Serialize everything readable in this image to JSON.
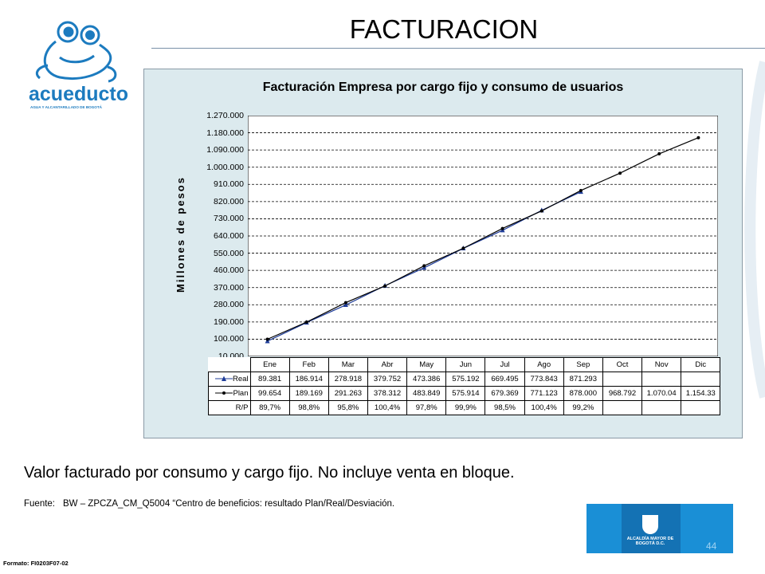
{
  "slide": {
    "title": "FACTURACION",
    "note": "Valor facturado por consumo y cargo fijo. No incluye venta en bloque.",
    "source_label": "Fuente:",
    "source_text": "BW – ZPCZA_CM_Q5004  “Centro  de beneficios: resultado Plan/Real/Desviación.",
    "formato": "Formato: FI0203F07-02",
    "page_number": "44",
    "logo_text": "acueducto",
    "logo_subtext": "AGUA Y ALCANTARILLADO DE BOGOTÁ",
    "alcaldia_text": "ALCALDÍA MAYOR DE BOGOTÁ D.C.",
    "colors": {
      "logo_blue": "#1c7bbf",
      "chart_bg": "#dceaee",
      "real_series": "#1f3d99",
      "plan_series": "#000000",
      "footer_blue": "#1a8fd6"
    }
  },
  "chart_data": {
    "type": "line",
    "title": "Facturación Empresa por cargo fijo y consumo de usuarios",
    "xlabel": "",
    "ylabel": "Millones de pesos",
    "ylim": [
      10000,
      1270000
    ],
    "yticks": [
      "1.270.000",
      "1.180.000",
      "1.090.000",
      "1.000.000",
      "910.000",
      "820.000",
      "730.000",
      "640.000",
      "550.000",
      "460.000",
      "370.000",
      "280.000",
      "190.000",
      "100.000",
      "10.000"
    ],
    "ytick_values": [
      1270000,
      1180000,
      1090000,
      1000000,
      910000,
      820000,
      730000,
      640000,
      550000,
      460000,
      370000,
      280000,
      190000,
      100000,
      10000
    ],
    "grid": "horizontal dashed",
    "categories": [
      "Ene",
      "Feb",
      "Mar",
      "Abr",
      "May",
      "Jun",
      "Jul",
      "Ago",
      "Sep",
      "Oct",
      "Nov",
      "Dic"
    ],
    "series": [
      {
        "name": "Real",
        "marker": "triangle",
        "values": [
          89381,
          186914,
          278918,
          379752,
          473386,
          575192,
          669495,
          773843,
          871293,
          null,
          null,
          null
        ],
        "labels": [
          "89.381",
          "186.914",
          "278.918",
          "379.752",
          "473.386",
          "575.192",
          "669.495",
          "773.843",
          "871.293",
          "",
          "",
          ""
        ]
      },
      {
        "name": "Plan",
        "marker": "diamond",
        "values": [
          99654,
          189169,
          291263,
          378312,
          483849,
          575914,
          679369,
          771123,
          878000,
          968792,
          1070040,
          1154330
        ],
        "labels": [
          "99.654",
          "189.169",
          "291.263",
          "378.312",
          "483.849",
          "575.914",
          "679.369",
          "771.123",
          "878.000",
          "968.792",
          "1.070.04",
          "1.154.33"
        ]
      }
    ],
    "table_rows": [
      {
        "name": "R/P",
        "labels": [
          "89,7%",
          "98,8%",
          "95,8%",
          "100,4%",
          "97,8%",
          "99,9%",
          "98,5%",
          "100,4%",
          "99,2%",
          "",
          "",
          ""
        ]
      }
    ]
  }
}
